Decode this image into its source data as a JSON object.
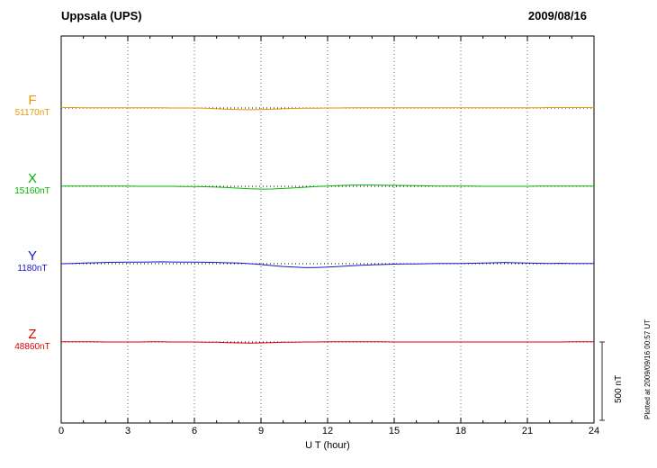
{
  "header": {
    "station_title": "Uppsala (UPS)",
    "date": "2009/08/16"
  },
  "chart_data": {
    "type": "line",
    "station": "Uppsala (UPS)",
    "date": "2009/08/16",
    "xlabel": "U T (hour)",
    "x_ticks": [
      0,
      3,
      6,
      9,
      12,
      15,
      18,
      21,
      24
    ],
    "x_range": [
      0,
      24
    ],
    "x_step_hours": 0.5,
    "grid": "dotted vertical gridlines every 3 hours; dotted horizontal baseline per component",
    "scale_bar": {
      "label": "500 nT",
      "span_nT": 500
    },
    "series": [
      {
        "name": "F",
        "baseline_label": "51170nT",
        "baseline_nT": 51170,
        "color": "#E89800",
        "deviations_nT": [
          3,
          3,
          2,
          2,
          2,
          2,
          1,
          1,
          1,
          1,
          0,
          0,
          0,
          -2,
          -5,
          -8,
          -10,
          -11,
          -10,
          -8,
          -5,
          -3,
          -2,
          -1,
          0,
          0,
          1,
          1,
          1,
          1,
          1,
          1,
          1,
          1,
          1,
          1,
          2,
          2,
          2,
          2,
          2,
          2,
          2,
          2,
          3,
          3,
          3,
          3,
          3
        ]
      },
      {
        "name": "X",
        "baseline_label": "15160nT",
        "baseline_nT": 15160,
        "color": "#00B400",
        "deviations_nT": [
          2,
          2,
          2,
          1,
          1,
          1,
          1,
          0,
          0,
          0,
          0,
          -1,
          -2,
          -3,
          -5,
          -8,
          -12,
          -16,
          -18,
          -17,
          -14,
          -10,
          -6,
          -2,
          2,
          5,
          7,
          8,
          8,
          7,
          6,
          5,
          4,
          3,
          2,
          1,
          1,
          1,
          0,
          0,
          0,
          0,
          0,
          1,
          1,
          1,
          1,
          1,
          1
        ]
      },
      {
        "name": "Y",
        "baseline_label": "1180nT",
        "baseline_nT": 1180,
        "color": "#1515CC",
        "deviations_nT": [
          0,
          2,
          4,
          6,
          8,
          9,
          10,
          10,
          11,
          12,
          11,
          10,
          10,
          9,
          8,
          6,
          4,
          0,
          -5,
          -12,
          -18,
          -22,
          -25,
          -24,
          -22,
          -18,
          -14,
          -10,
          -7,
          -5,
          -3,
          -2,
          -1,
          0,
          1,
          2,
          2,
          3,
          4,
          6,
          8,
          6,
          4,
          3,
          2,
          3,
          2,
          2,
          2
        ]
      },
      {
        "name": "Z",
        "baseline_label": "48860nT",
        "baseline_nT": 48860,
        "color": "#DD0000",
        "deviations_nT": [
          1,
          1,
          1,
          1,
          0,
          0,
          0,
          0,
          1,
          1,
          0,
          0,
          0,
          -1,
          -2,
          -4,
          -6,
          -7,
          -6,
          -4,
          -2,
          -1,
          0,
          0,
          1,
          1,
          1,
          1,
          1,
          1,
          0,
          0,
          0,
          0,
          0,
          0,
          0,
          0,
          0,
          0,
          0,
          0,
          0,
          0,
          0,
          0,
          1,
          1,
          1
        ]
      }
    ]
  },
  "footer": {
    "plotted_at": "Plotted at 2009/09/16 00:57 UT"
  }
}
